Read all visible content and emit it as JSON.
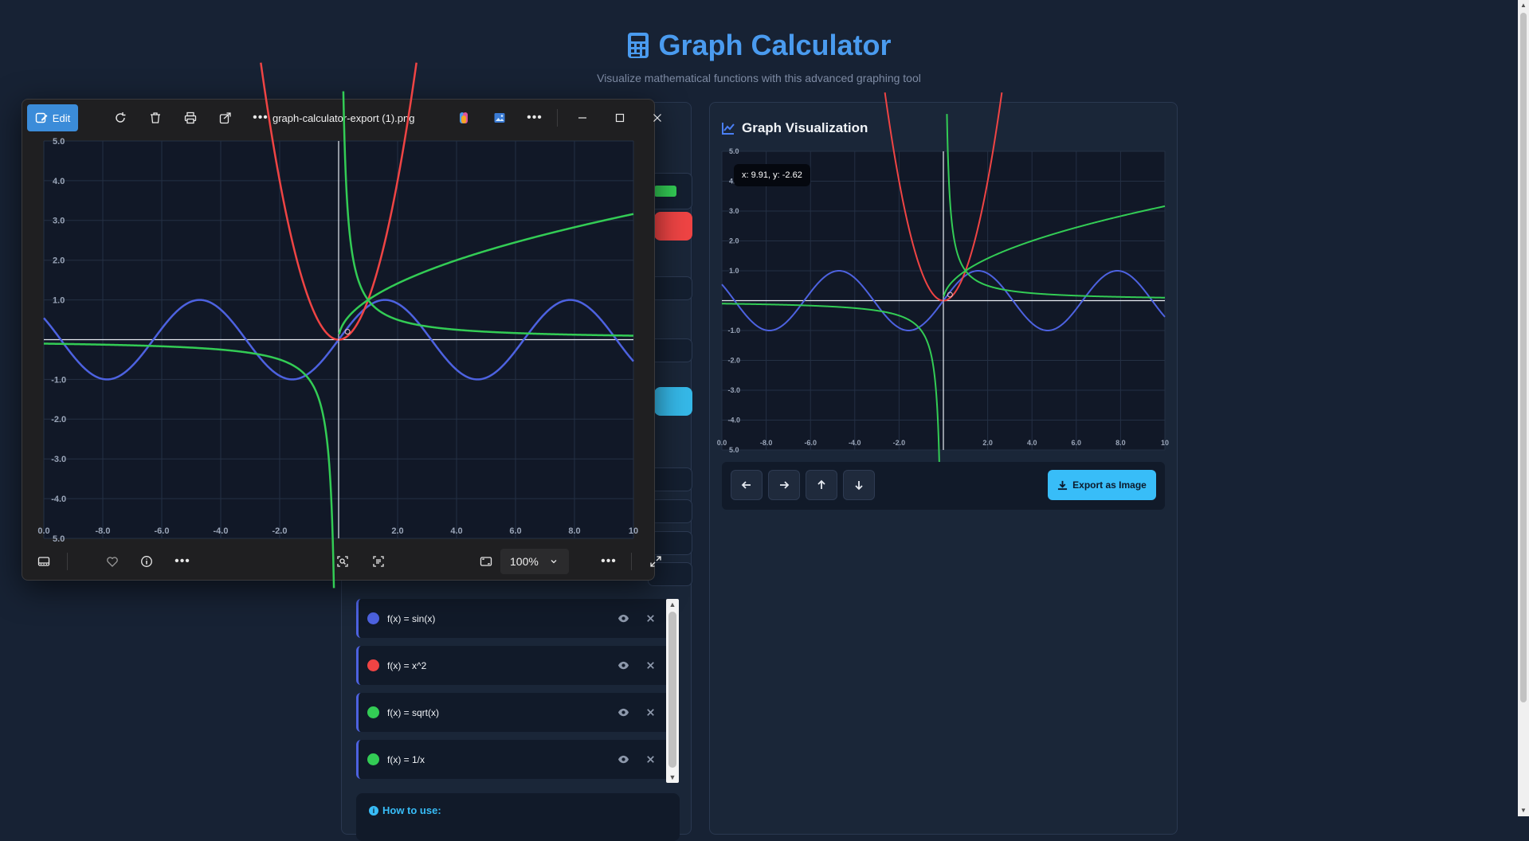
{
  "header": {
    "title": "Graph Calculator",
    "subtitle": "Visualize mathematical functions with this advanced graphing tool"
  },
  "viewer": {
    "edit_label": "Edit",
    "filename": "graph-calculator-export (1).png",
    "zoom": "100%"
  },
  "functions": [
    {
      "label": "f(x) = sin(x)",
      "color": "#4d62e0"
    },
    {
      "label": "f(x) = x^2",
      "color": "#ef4444"
    },
    {
      "label": "f(x) = sqrt(x)",
      "color": "#33cc55"
    },
    {
      "label": "f(x) = 1/x",
      "color": "#33cc55"
    }
  ],
  "how_to": {
    "title": "How to use:"
  },
  "viz": {
    "title": "Graph Visualization",
    "tooltip": "x: 9.91, y: -2.62",
    "export_label": "Export as Image"
  },
  "chart_data": {
    "type": "line",
    "x_range": [
      -10,
      10
    ],
    "y_range": [
      -5,
      5
    ],
    "x_ticks": [
      "0.0",
      "-8.0",
      "-6.0",
      "-4.0",
      "-2.0",
      "2.0",
      "4.0",
      "6.0",
      "8.0",
      "10"
    ],
    "y_ticks": [
      "5.0",
      "4.0",
      "3.0",
      "2.0",
      "1.0",
      "-1.0",
      "-2.0",
      "-3.0",
      "-4.0",
      "5.0"
    ],
    "series": [
      {
        "name": "sin(x)",
        "fn": "sin",
        "color": "#4d62e0"
      },
      {
        "name": "x^2",
        "fn": "square",
        "color": "#ef4444"
      },
      {
        "name": "sqrt(x)",
        "fn": "sqrt",
        "color": "#33cc55"
      },
      {
        "name": "1/x",
        "fn": "recip",
        "color": "#33cc55"
      }
    ]
  }
}
